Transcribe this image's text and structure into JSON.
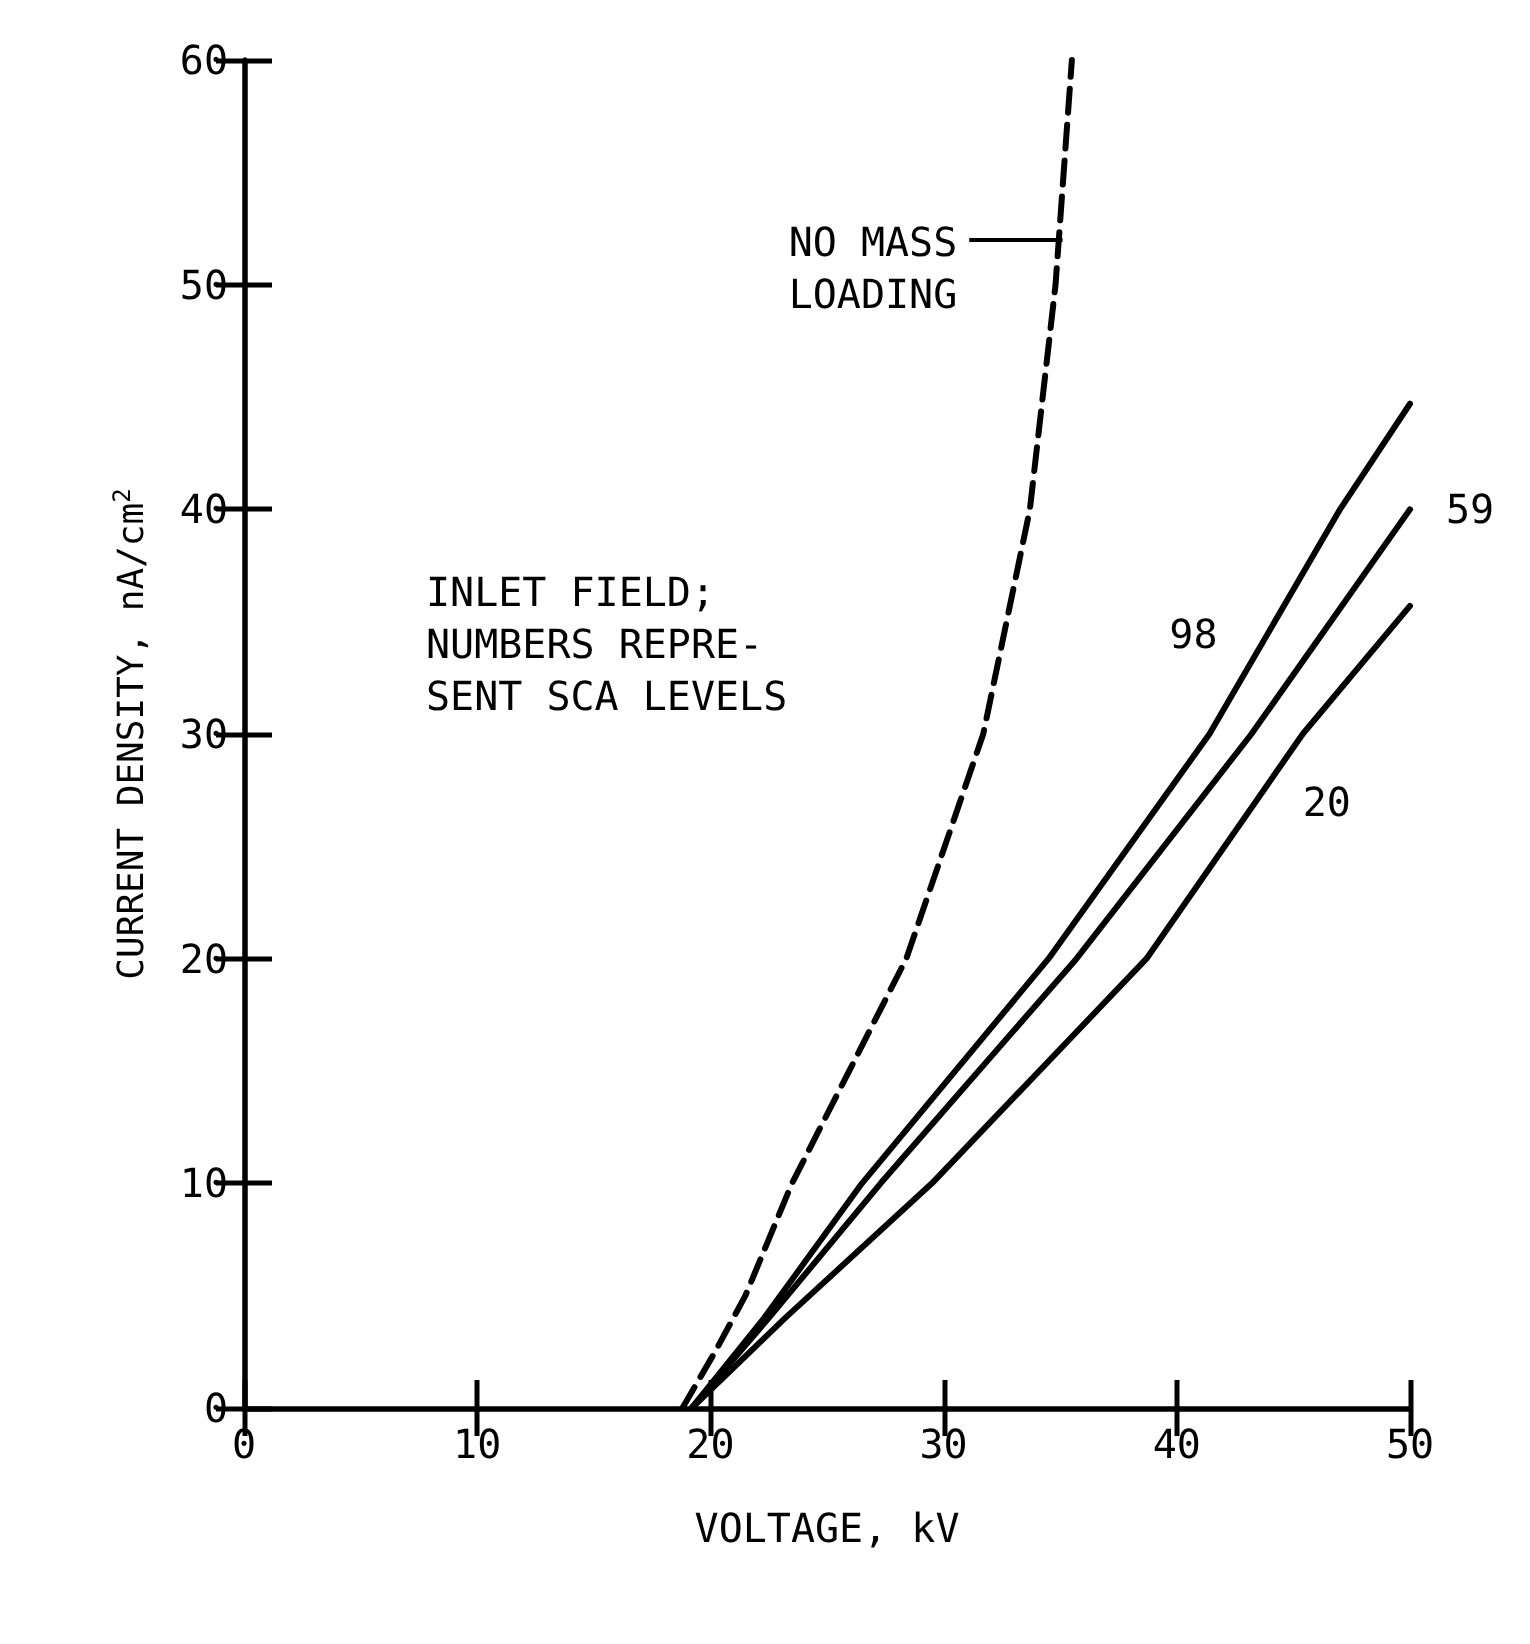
{
  "chart_data": {
    "type": "line",
    "xlabel": "VOLTAGE, kV",
    "ylabel": "CURRENT DENSITY, nA/cm$^{2}$",
    "xlim": [
      0,
      50
    ],
    "ylim": [
      0,
      60
    ],
    "xticks": [
      0,
      10,
      20,
      30,
      40,
      50
    ],
    "yticks": [
      0,
      10,
      20,
      30,
      40,
      50,
      60
    ],
    "grid": false,
    "legend": false,
    "marker": "none",
    "series": [
      {
        "color": "#000000",
        "line_style": "dashed",
        "x": [
          18.8,
          20.2,
          21.5,
          23.5,
          28.4,
          31.7,
          33.7,
          34.8,
          35.5
        ],
        "values": [
          0,
          2.5,
          5,
          10,
          20,
          30,
          40,
          50,
          60
        ]
      },
      {
        "name": "98",
        "color": "#000000",
        "line_style": "solid",
        "x": [
          19.2,
          22.3,
          26.5,
          34.5,
          41.4,
          47,
          50
        ],
        "values": [
          0,
          4,
          10,
          20,
          30,
          40,
          44.7
        ]
      },
      {
        "name": "59",
        "color": "#000000",
        "line_style": "solid",
        "x": [
          19.2,
          22.5,
          27.3,
          35.7,
          43.2,
          50
        ],
        "values": [
          0,
          4,
          10,
          20,
          30,
          40
        ]
      },
      {
        "name": "20",
        "color": "#000000",
        "line_style": "solid",
        "x": [
          19.2,
          23.2,
          29.5,
          38.7,
          45.4,
          50
        ],
        "values": [
          0,
          4,
          10,
          20,
          30,
          35.7
        ]
      }
    ],
    "annotations": [
      {
        "text": "NO MASS\nLOADING",
        "x": 35.1,
        "y": 52
      },
      "INLET FIELD;\nNUMBERS REPRE-\nSENT SCA LEVELS"
    ]
  }
}
